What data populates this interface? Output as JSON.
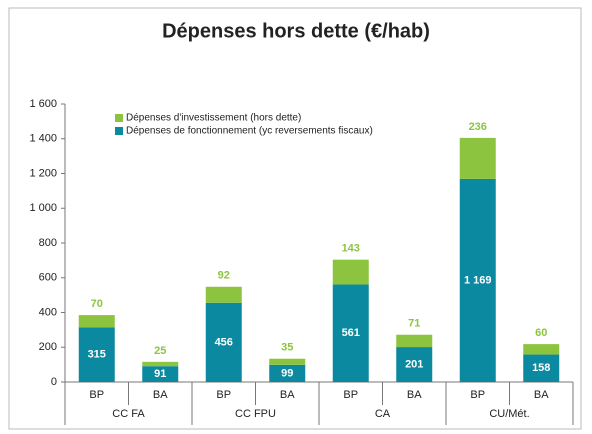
{
  "chart_data": {
    "type": "stacked-bar",
    "title": "Dépenses hors dette (€/hab)",
    "categories": [
      "BP",
      "BA",
      "BP",
      "BA",
      "BP",
      "BA",
      "BP",
      "BA"
    ],
    "groups": [
      "CC FA",
      "CC FPU",
      "CA",
      "CU/Mét."
    ],
    "series": [
      {
        "name": "Dépenses de fonctionnement (yc reversements fiscaux)",
        "color": "#0a89a0",
        "values": [
          315,
          91,
          456,
          99,
          561,
          201,
          1169,
          158
        ],
        "value_labels": [
          "315",
          "91",
          "456",
          "99",
          "561",
          "201",
          "1 169",
          "158"
        ]
      },
      {
        "name": "Dépenses d'investissement (hors dette)",
        "color": "#8cc43f",
        "values": [
          70,
          25,
          92,
          35,
          143,
          71,
          236,
          60
        ]
      }
    ],
    "ylim": [
      0,
      1600
    ],
    "yticks": [
      0,
      200,
      400,
      600,
      800,
      {
        "value": 1000,
        "label": "1 000"
      },
      {
        "value": 1200,
        "label": "1 200"
      },
      {
        "value": 1400,
        "label": "1 400"
      },
      {
        "value": 1600,
        "label": "1 600"
      }
    ],
    "legend": "top-left"
  }
}
